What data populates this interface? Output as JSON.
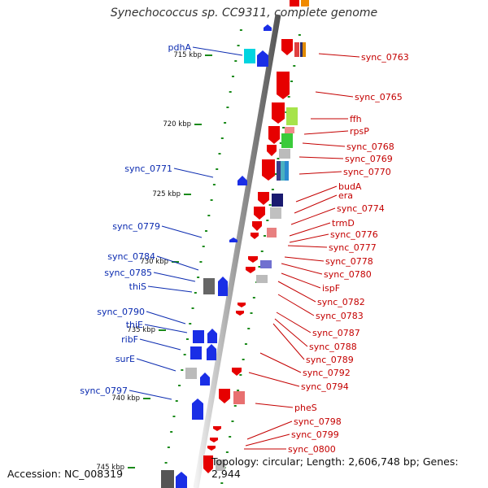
{
  "title": "Synechococcus sp. CC9311, complete genome",
  "footer": {
    "accession": "Accession: NC_008319",
    "topology": "Topology: circular; Length: 2,606,748 bp; Genes: 2,944"
  },
  "colors": {
    "plus_strand": "#1a2ee6",
    "minus_strand": "#e60000",
    "left_label": "#0b2bb0",
    "right_label": "#c40000",
    "tick": "#1a8a1a"
  },
  "kbp_labels": [
    "715 kbp",
    "720 kbp",
    "725 kbp",
    "730 kbp",
    "735 kbp",
    "740 kbp",
    "745 kbp"
  ],
  "left_genes": [
    "pdhA",
    "sync_0771",
    "sync_0779",
    "sync_0784",
    "sync_0785",
    "thiS",
    "sync_0790",
    "thiE",
    "ribF",
    "surE",
    "sync_0797"
  ],
  "right_genes": [
    "sync_0763",
    "sync_0765",
    "ffh",
    "rpsP",
    "sync_0768",
    "sync_0769",
    "sync_0770",
    "budA",
    "era",
    "sync_0774",
    "trmD",
    "sync_0776",
    "sync_0777",
    "sync_0778",
    "sync_0780",
    "ispF",
    "sync_0782",
    "sync_0783",
    "sync_0787",
    "sync_0788",
    "sync_0789",
    "sync_0792",
    "sync_0794",
    "pheS",
    "sync_0798",
    "sync_0799",
    "sync_0800"
  ]
}
